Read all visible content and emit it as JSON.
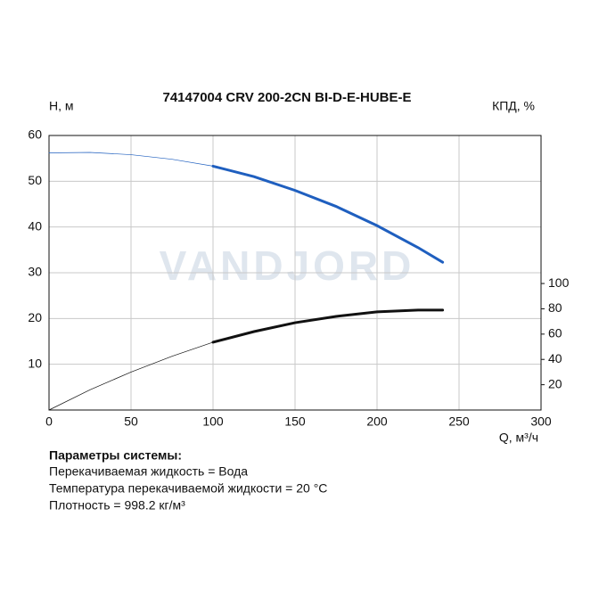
{
  "chart_data": {
    "type": "line",
    "title": "74147004 CRV 200-2CN BI-D-E-HUBE-E",
    "y_label": "H, м",
    "y2_label": "КПД, %",
    "x_label": "Q, м³/ч",
    "watermark": "VANDJORD",
    "x": [
      0,
      25,
      50,
      75,
      100,
      125,
      150,
      175,
      200,
      225,
      240
    ],
    "series": [
      {
        "color": "#1f5fbf",
        "width": 0.7,
        "values": [
          56.2,
          56.3,
          55.8,
          54.8,
          53.3,
          null,
          null,
          null,
          null,
          null,
          null
        ]
      },
      {
        "color": "#1f5fbf",
        "width": 3,
        "values": [
          null,
          null,
          null,
          null,
          53.3,
          51,
          48,
          44.5,
          40.3,
          35.5,
          32.3
        ]
      },
      {
        "color": "#111111",
        "width": 0.7,
        "axis": "y2",
        "values": [
          0,
          16,
          30,
          42.5,
          53.6,
          null,
          null,
          null,
          null,
          null,
          null
        ]
      },
      {
        "color": "#111111",
        "width": 3,
        "axis": "y2",
        "values": [
          null,
          null,
          null,
          null,
          53.6,
          62,
          69,
          74,
          77.6,
          79,
          79
        ]
      }
    ],
    "xlim": [
      0,
      300
    ],
    "xticks": [
      0,
      50,
      100,
      150,
      200,
      250,
      300
    ],
    "ylim": [
      0,
      60
    ],
    "yticks": [
      10,
      20,
      30,
      40,
      50,
      60
    ],
    "y2lim": [
      0,
      217
    ],
    "y2ticks": [
      20,
      40,
      60,
      80,
      100
    ],
    "grid": true
  },
  "notes": {
    "title": "Параметры системы:",
    "lines": [
      "Перекачиваемая жидкость = Вода",
      "Температура перекачиваемой жидкости = 20 °C",
      "Плотность = 998.2 кг/м³"
    ]
  }
}
